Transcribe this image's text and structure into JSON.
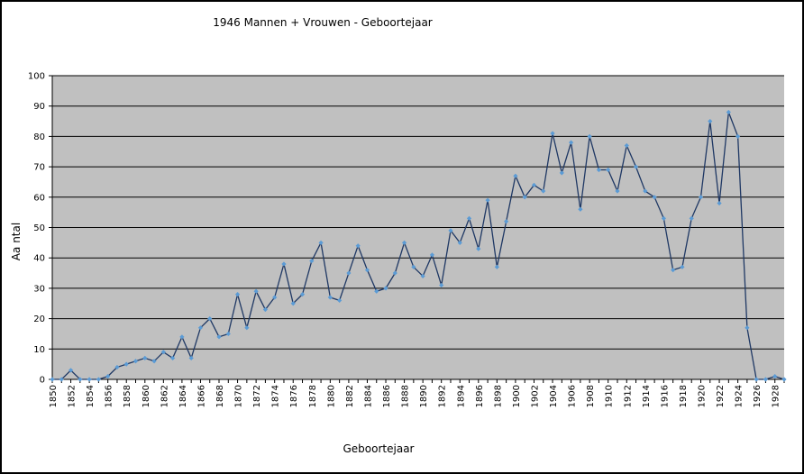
{
  "chart_data": {
    "type": "line",
    "title": "1946 Mannen + Vrouwen - Geboortejaar",
    "xlabel": "Geboortejaar",
    "ylabel": "Aa ntal",
    "ylim": [
      0,
      100
    ],
    "yticks": [
      0,
      10,
      20,
      30,
      40,
      50,
      60,
      70,
      80,
      90,
      100
    ],
    "xticks": [
      1850,
      1852,
      1854,
      1856,
      1858,
      1860,
      1862,
      1864,
      1866,
      1868,
      1870,
      1872,
      1874,
      1876,
      1878,
      1880,
      1882,
      1884,
      1886,
      1888,
      1890,
      1892,
      1894,
      1896,
      1898,
      1900,
      1902,
      1904,
      1906,
      1908,
      1910,
      1912,
      1914,
      1916,
      1918,
      1920,
      1922,
      1924,
      1926,
      1928
    ],
    "grid": "horizontal",
    "legend": "none",
    "plot_background": "#c0c0c0",
    "line_color": "#1f3864",
    "marker_color": "#5b9bd5",
    "series": [
      {
        "x": [
          1850,
          1851,
          1852,
          1853,
          1854,
          1855,
          1856,
          1857,
          1858,
          1859,
          1860,
          1861,
          1862,
          1863,
          1864,
          1865,
          1866,
          1867,
          1868,
          1869,
          1870,
          1871,
          1872,
          1873,
          1874,
          1875,
          1876,
          1877,
          1878,
          1879,
          1880,
          1881,
          1882,
          1883,
          1884,
          1885,
          1886,
          1887,
          1888,
          1889,
          1890,
          1891,
          1892,
          1893,
          1894,
          1895,
          1896,
          1897,
          1898,
          1899,
          1900,
          1901,
          1902,
          1903,
          1904,
          1905,
          1906,
          1907,
          1908,
          1909,
          1910,
          1911,
          1912,
          1913,
          1914,
          1915,
          1916,
          1917,
          1918,
          1919,
          1920,
          1921,
          1922,
          1923,
          1924,
          1925,
          1926,
          1927,
          1928,
          1929
        ],
        "values": [
          0,
          0,
          3,
          0,
          0,
          0,
          1,
          4,
          5,
          6,
          7,
          6,
          9,
          7,
          14,
          7,
          17,
          20,
          14,
          15,
          28,
          17,
          29,
          23,
          27,
          38,
          25,
          28,
          39,
          45,
          27,
          26,
          35,
          44,
          36,
          29,
          30,
          35,
          45,
          37,
          34,
          41,
          31,
          49,
          45,
          53,
          43,
          59,
          37,
          52,
          67,
          60,
          64,
          62,
          81,
          68,
          78,
          56,
          80,
          69,
          69,
          62,
          77,
          70,
          62,
          60,
          53,
          36,
          37,
          53,
          60,
          85,
          58,
          88,
          80,
          17,
          0,
          0,
          1,
          0
        ]
      }
    ]
  }
}
